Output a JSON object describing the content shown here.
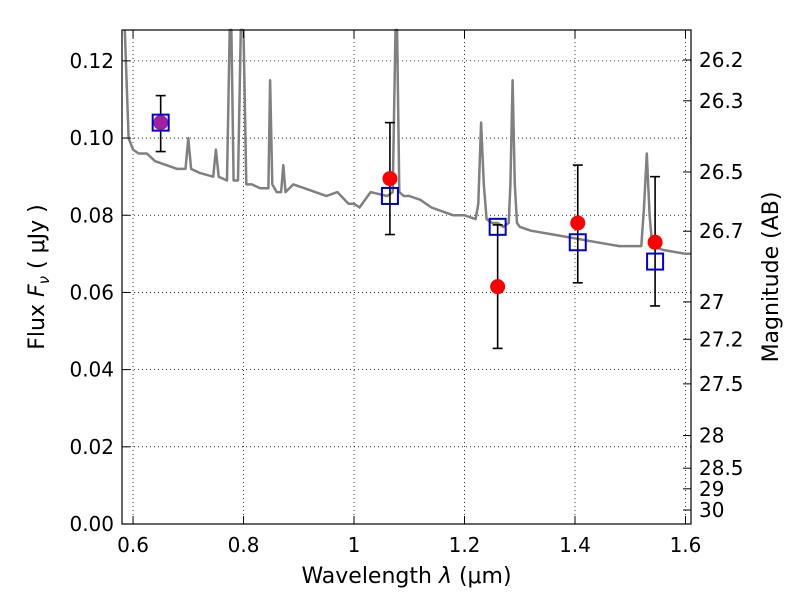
{
  "chart_data": {
    "type": "scatter",
    "title": "",
    "xlabel": "Wavelength  λ (μm)",
    "ylabel": "Flux  F_ν  ( μJy )",
    "ylabel_parts": {
      "pre": "Flux  ",
      "sym": "F",
      "sub": "ν",
      "post": "  ( μJy )"
    },
    "xlabel_parts": {
      "pre": "Wavelength  ",
      "lambda": "λ",
      "post": " (μm)"
    },
    "y2label": "Magnitude (AB)",
    "xlim": [
      0.58,
      1.61
    ],
    "ylim": [
      0.0,
      0.128
    ],
    "grid": true,
    "xticks": [
      0.6,
      0.8,
      1.0,
      1.2,
      1.4,
      1.6
    ],
    "xtick_labels": [
      "0.6",
      "0.8",
      "1",
      "1.2",
      "1.4",
      "1.6"
    ],
    "yticks": [
      0.0,
      0.02,
      0.04,
      0.06,
      0.08,
      0.1,
      0.12
    ],
    "ytick_labels": [
      "0.00",
      "0.02",
      "0.04",
      "0.06",
      "0.08",
      "0.10",
      "0.12"
    ],
    "mag_ticks": [
      "26.2",
      "26.3",
      "26.5",
      "26.7",
      "27",
      "27.2",
      "27.5",
      "28",
      "28.5",
      "29",
      "30"
    ],
    "colors": {
      "model": "#808080",
      "observed": "#ff0000",
      "model_points": "#0000cc",
      "overlap": "#a020a0",
      "errorbar": "#000000"
    },
    "model_spectrum": {
      "x": [
        0.585,
        0.592,
        0.6,
        0.61,
        0.625,
        0.64,
        0.66,
        0.68,
        0.695,
        0.7,
        0.705,
        0.72,
        0.745,
        0.75,
        0.755,
        0.77,
        0.775,
        0.778,
        0.782,
        0.79,
        0.795,
        0.8,
        0.805,
        0.815,
        0.83,
        0.845,
        0.848,
        0.852,
        0.86,
        0.868,
        0.872,
        0.876,
        0.89,
        0.91,
        0.93,
        0.95,
        0.97,
        0.99,
        1.0,
        1.01,
        1.03,
        1.06,
        1.07,
        1.075,
        1.078,
        1.082,
        1.09,
        1.1,
        1.12,
        1.14,
        1.16,
        1.18,
        1.2,
        1.22,
        1.225,
        1.23,
        1.235,
        1.24,
        1.25,
        1.26,
        1.27,
        1.28,
        1.283,
        1.287,
        1.291,
        1.295,
        1.3,
        1.32,
        1.36,
        1.4,
        1.44,
        1.48,
        1.52,
        1.525,
        1.53,
        1.535,
        1.54,
        1.56,
        1.6,
        1.61
      ],
      "y": [
        0.128,
        0.1,
        0.097,
        0.096,
        0.096,
        0.094,
        0.093,
        0.092,
        0.092,
        0.1,
        0.092,
        0.091,
        0.09,
        0.097,
        0.09,
        0.089,
        0.128,
        0.128,
        0.089,
        0.089,
        0.128,
        0.128,
        0.088,
        0.088,
        0.087,
        0.087,
        0.115,
        0.088,
        0.086,
        0.086,
        0.093,
        0.086,
        0.088,
        0.087,
        0.086,
        0.085,
        0.086,
        0.083,
        0.083,
        0.082,
        0.086,
        0.085,
        0.086,
        0.128,
        0.128,
        0.086,
        0.085,
        0.085,
        0.084,
        0.082,
        0.081,
        0.08,
        0.08,
        0.079,
        0.083,
        0.104,
        0.088,
        0.079,
        0.078,
        0.078,
        0.077,
        0.078,
        0.088,
        0.115,
        0.088,
        0.078,
        0.077,
        0.076,
        0.075,
        0.074,
        0.073,
        0.072,
        0.072,
        0.082,
        0.096,
        0.08,
        0.072,
        0.071,
        0.07,
        0.07
      ]
    },
    "series": [
      {
        "kind": "observed",
        "marker": "filled-circle",
        "x": [
          0.65,
          1.065,
          1.26,
          1.405,
          1.545
        ],
        "y": [
          0.104,
          0.0895,
          0.0615,
          0.078,
          0.073
        ],
        "yerr_low": [
          0.0965,
          0.075,
          0.0455,
          0.0625,
          0.0565
        ],
        "yerr_high": [
          0.111,
          0.104,
          0.0775,
          0.093,
          0.09
        ]
      },
      {
        "kind": "model",
        "marker": "open-square",
        "x": [
          0.65,
          1.065,
          1.26,
          1.405,
          1.545
        ],
        "y": [
          0.104,
          0.085,
          0.077,
          0.073,
          0.068
        ]
      }
    ]
  }
}
